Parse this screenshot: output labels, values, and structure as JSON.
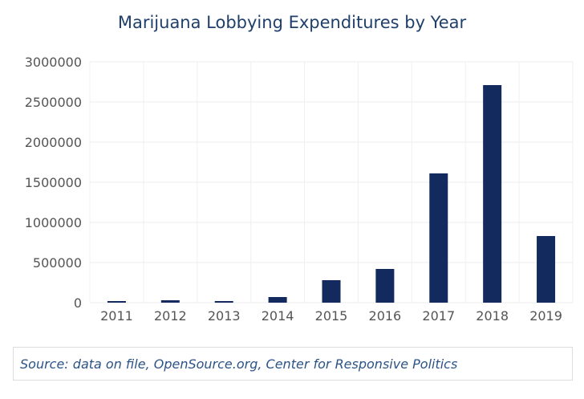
{
  "chart_data": {
    "type": "bar",
    "title": "Marijuana Lobbying Expenditures by Year",
    "xlabel": "",
    "ylabel": "",
    "categories": [
      "2011",
      "2012",
      "2013",
      "2014",
      "2015",
      "2016",
      "2017",
      "2018",
      "2019"
    ],
    "values": [
      20000,
      30000,
      20000,
      70000,
      280000,
      420000,
      1610000,
      2710000,
      830000
    ],
    "ylim": [
      0,
      3000000
    ],
    "yticks": [
      "0",
      "500000",
      "1000000",
      "1500000",
      "2000000",
      "2500000",
      "3000000"
    ],
    "bar_color": "#122a5e",
    "grid": true,
    "legend": "none"
  },
  "source": "Source: data on file, OpenSource.org, Center for Responsive Politics"
}
